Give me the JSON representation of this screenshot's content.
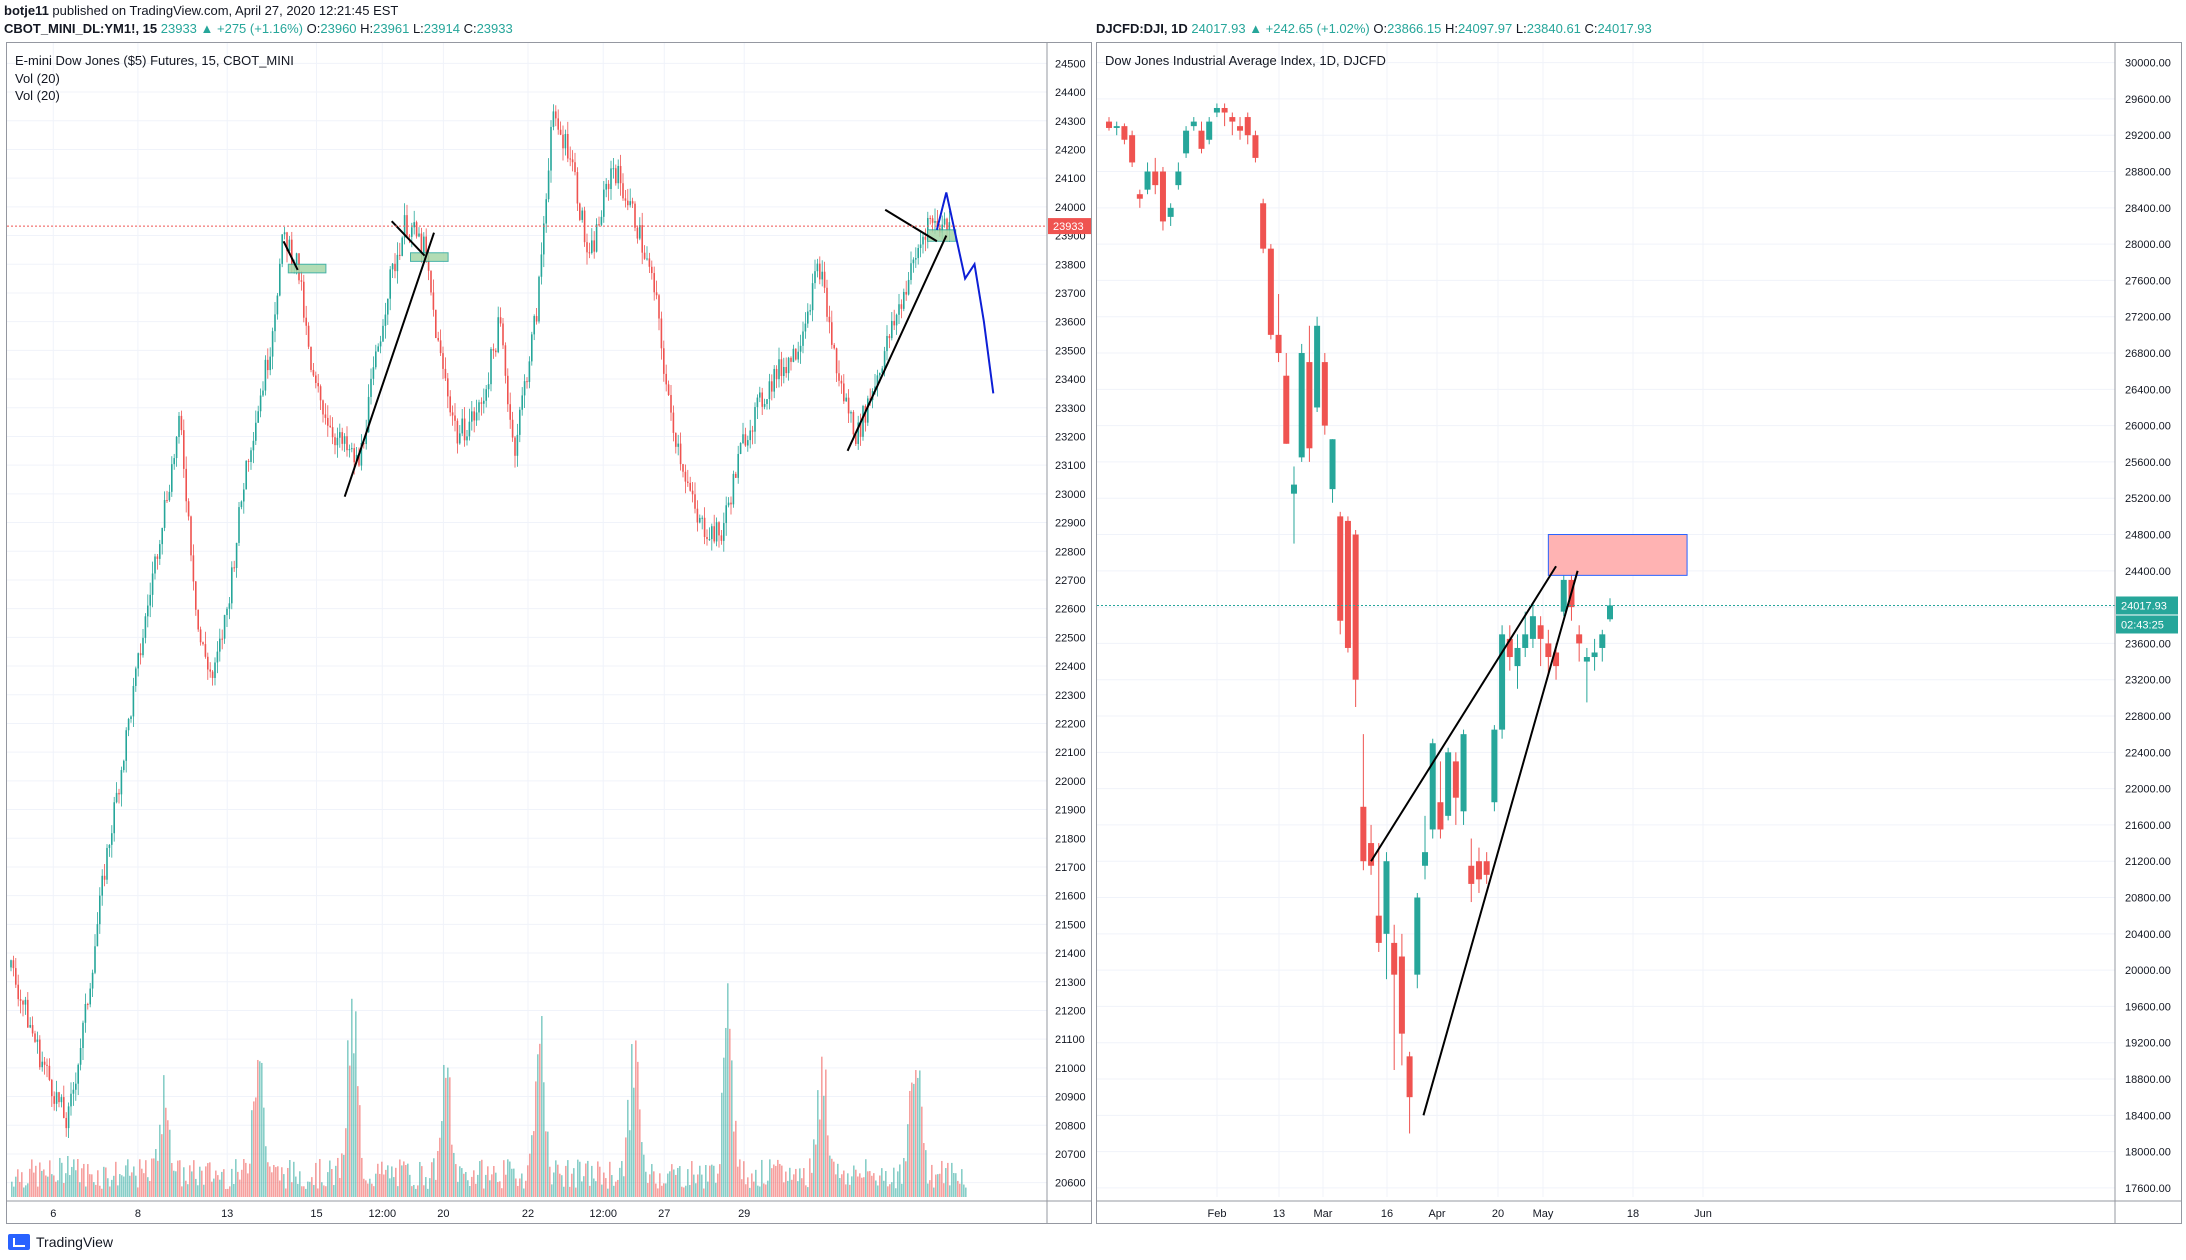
{
  "publish_line": {
    "user": "botje11",
    "text": "published on TradingView.com, April 27, 2020 12:21:45 EST"
  },
  "left_header": {
    "symbol": "CBOT_MINI_DL:YM1!, 15",
    "change": "23933 ▲ +275 (+1.16%)",
    "o_label": "O:",
    "o_value": "23960",
    "h_label": "H:",
    "h_value": "23961",
    "l_label": "L:",
    "l_value": "23914",
    "c_label": "C:",
    "c_value": "23933"
  },
  "right_header": {
    "symbol": "DJCFD:DJI, 1D",
    "change": "24017.93 ▲ +242.65 (+1.02%)",
    "o_label": "O:",
    "o_value": "23866.15",
    "h_label": "H:",
    "h_value": "24097.97",
    "l_label": "L:",
    "l_value": "23840.61",
    "c_label": "C:",
    "c_value": "24017.93"
  },
  "left_chart": {
    "title": "E-mini Dow Jones ($5) Futures, 15, CBOT_MINI",
    "indicators": [
      "Vol (20)",
      "Vol (20)"
    ],
    "last_price_label": "23933",
    "y_ticks": [
      "24500",
      "24400",
      "24300",
      "24200",
      "24100",
      "24000",
      "23900",
      "23800",
      "23700",
      "23600",
      "23500",
      "23400",
      "23300",
      "23200",
      "23100",
      "23000",
      "22900",
      "22800",
      "22700",
      "22600",
      "22500",
      "22400",
      "22300",
      "22200",
      "22100",
      "22000",
      "21900",
      "21800",
      "21700",
      "21600",
      "21500",
      "21400",
      "21300",
      "21200",
      "21100",
      "21000",
      "20900",
      "20800",
      "20700",
      "20600"
    ],
    "x_ticks": [
      "6",
      "8",
      "13",
      "15",
      "12:00",
      "20",
      "22",
      "12:00",
      "27",
      "29"
    ]
  },
  "right_chart": {
    "title": "Dow Jones Industrial Average Index, 1D, DJCFD",
    "last_price_label": "24017.93",
    "countdown_label": "02:43:25",
    "y_ticks": [
      "30000.00",
      "29600.00",
      "29200.00",
      "28800.00",
      "28400.00",
      "28000.00",
      "27600.00",
      "27200.00",
      "26800.00",
      "26400.00",
      "26000.00",
      "25600.00",
      "25200.00",
      "24800.00",
      "24400.00",
      "24000.00",
      "23600.00",
      "23200.00",
      "22800.00",
      "22400.00",
      "22000.00",
      "21600.00",
      "21200.00",
      "20800.00",
      "20400.00",
      "20000.00",
      "19600.00",
      "19200.00",
      "18800.00",
      "18400.00",
      "18000.00",
      "17600.00"
    ],
    "x_ticks": [
      "Feb",
      "13",
      "Mar",
      "16",
      "Apr",
      "20",
      "May",
      "18",
      "Jun"
    ]
  },
  "chart_data": [
    {
      "type": "candlestick",
      "title": "E-mini Dow Jones ($5) Futures, 15, CBOT_MINI",
      "ylim": [
        20550,
        24550
      ],
      "last_price": 23933,
      "price_path": [
        {
          "x": 0,
          "y": 21350
        },
        {
          "x": 0.3,
          "y": 21050
        },
        {
          "x": 0.6,
          "y": 20800
        },
        {
          "x": 0.8,
          "y": 21200
        },
        {
          "x": 1.0,
          "y": 21700
        },
        {
          "x": 1.3,
          "y": 22300
        },
        {
          "x": 1.6,
          "y": 22900
        },
        {
          "x": 1.8,
          "y": 23250
        },
        {
          "x": 2.0,
          "y": 22500
        },
        {
          "x": 2.15,
          "y": 22350
        },
        {
          "x": 2.3,
          "y": 22600
        },
        {
          "x": 2.5,
          "y": 23100
        },
        {
          "x": 2.75,
          "y": 23500
        },
        {
          "x": 2.9,
          "y": 23900
        },
        {
          "x": 3.05,
          "y": 23800
        },
        {
          "x": 3.2,
          "y": 23400
        },
        {
          "x": 3.45,
          "y": 23200
        },
        {
          "x": 3.7,
          "y": 23100
        },
        {
          "x": 4.0,
          "y": 23700
        },
        {
          "x": 4.2,
          "y": 23950
        },
        {
          "x": 4.4,
          "y": 23850
        },
        {
          "x": 4.55,
          "y": 23500
        },
        {
          "x": 4.75,
          "y": 23200
        },
        {
          "x": 5.0,
          "y": 23300
        },
        {
          "x": 5.2,
          "y": 23600
        },
        {
          "x": 5.35,
          "y": 23150
        },
        {
          "x": 5.6,
          "y": 23650
        },
        {
          "x": 5.75,
          "y": 24300
        },
        {
          "x": 5.95,
          "y": 24200
        },
        {
          "x": 6.15,
          "y": 23800
        },
        {
          "x": 6.4,
          "y": 24150
        },
        {
          "x": 6.65,
          "y": 23950
        },
        {
          "x": 6.85,
          "y": 23700
        },
        {
          "x": 7.0,
          "y": 23300
        },
        {
          "x": 7.3,
          "y": 22900
        },
        {
          "x": 7.55,
          "y": 22850
        },
        {
          "x": 7.8,
          "y": 23200
        },
        {
          "x": 8.1,
          "y": 23400
        },
        {
          "x": 8.35,
          "y": 23500
        },
        {
          "x": 8.6,
          "y": 23800
        },
        {
          "x": 8.8,
          "y": 23400
        },
        {
          "x": 9.0,
          "y": 23200
        },
        {
          "x": 9.25,
          "y": 23450
        },
        {
          "x": 9.5,
          "y": 23700
        },
        {
          "x": 9.75,
          "y": 23950
        },
        {
          "x": 10.0,
          "y": 23933
        }
      ],
      "projection_path": [
        {
          "x": 9.85,
          "y": 23920
        },
        {
          "x": 9.95,
          "y": 24050
        },
        {
          "x": 10.05,
          "y": 23900
        },
        {
          "x": 10.15,
          "y": 23750
        },
        {
          "x": 10.25,
          "y": 23800
        },
        {
          "x": 10.35,
          "y": 23600
        },
        {
          "x": 10.45,
          "y": 23350
        }
      ],
      "volume_peaks": [
        0.1,
        0.6,
        0.95,
        1.0,
        0.55,
        0.8,
        0.7,
        0.9,
        0.75,
        1.0
      ],
      "zones": [
        {
          "x1": 2.95,
          "x2": 3.35,
          "y1": 23770,
          "y2": 23800
        },
        {
          "x1": 4.25,
          "x2": 4.65,
          "y1": 23810,
          "y2": 23840
        },
        {
          "x1": 9.75,
          "x2": 10.05,
          "y1": 23880,
          "y2": 23920
        }
      ],
      "trendlines": [
        {
          "x1": 2.9,
          "y1": 23880,
          "x2": 3.05,
          "y2": 23780
        },
        {
          "x1": 3.55,
          "y1": 22990,
          "x2": 4.5,
          "y2": 23910
        },
        {
          "x1": 4.05,
          "y1": 23950,
          "x2": 4.4,
          "y2": 23830
        },
        {
          "x1": 8.9,
          "y1": 23150,
          "x2": 9.95,
          "y2": 23900
        },
        {
          "x1": 9.3,
          "y1": 23990,
          "x2": 9.85,
          "y2": 23880
        }
      ]
    },
    {
      "type": "candlestick",
      "title": "Dow Jones Industrial Average Index, 1D, DJCFD",
      "ylim": [
        17500,
        30150
      ],
      "last_price": 24017.93,
      "candles": [
        {
          "o": 29350,
          "c": 29280,
          "h": 29400,
          "l": 29250
        },
        {
          "o": 29280,
          "c": 29300,
          "h": 29350,
          "l": 29200
        },
        {
          "o": 29300,
          "c": 29150,
          "h": 29330,
          "l": 29100
        },
        {
          "o": 29200,
          "c": 28900,
          "h": 29250,
          "l": 28850
        },
        {
          "o": 28550,
          "c": 28500,
          "h": 28600,
          "l": 28400
        },
        {
          "o": 28600,
          "c": 28800,
          "h": 28900,
          "l": 28550
        },
        {
          "o": 28800,
          "c": 28650,
          "h": 28950,
          "l": 28550
        },
        {
          "o": 28800,
          "c": 28250,
          "h": 28850,
          "l": 28150
        },
        {
          "o": 28300,
          "c": 28400,
          "h": 28450,
          "l": 28200
        },
        {
          "o": 28650,
          "c": 28800,
          "h": 28900,
          "l": 28600
        },
        {
          "o": 29000,
          "c": 29250,
          "h": 29300,
          "l": 28950
        },
        {
          "o": 29300,
          "c": 29350,
          "h": 29400,
          "l": 29250
        },
        {
          "o": 29250,
          "c": 29050,
          "h": 29350,
          "l": 29000
        },
        {
          "o": 29150,
          "c": 29350,
          "h": 29400,
          "l": 29100
        },
        {
          "o": 29450,
          "c": 29500,
          "h": 29550,
          "l": 29400
        },
        {
          "o": 29500,
          "c": 29450,
          "h": 29550,
          "l": 29300
        },
        {
          "o": 29400,
          "c": 29350,
          "h": 29450,
          "l": 29200
        },
        {
          "o": 29300,
          "c": 29250,
          "h": 29400,
          "l": 29150
        },
        {
          "o": 29400,
          "c": 29200,
          "h": 29450,
          "l": 29100
        },
        {
          "o": 29200,
          "c": 28950,
          "h": 29250,
          "l": 28900
        },
        {
          "o": 28450,
          "c": 27950,
          "h": 28500,
          "l": 27900
        },
        {
          "o": 27950,
          "c": 27000,
          "h": 28000,
          "l": 26950
        },
        {
          "o": 27000,
          "c": 26800,
          "h": 27450,
          "l": 26700
        },
        {
          "o": 26550,
          "c": 25800,
          "h": 26800,
          "l": 25800
        },
        {
          "o": 25250,
          "c": 25350,
          "h": 25550,
          "l": 24700
        },
        {
          "o": 25650,
          "c": 26800,
          "h": 26900,
          "l": 25600
        },
        {
          "o": 26700,
          "c": 25750,
          "h": 27100,
          "l": 25600
        },
        {
          "o": 26200,
          "c": 27100,
          "h": 27200,
          "l": 26150
        },
        {
          "o": 26700,
          "c": 26000,
          "h": 26800,
          "l": 25900
        },
        {
          "o": 25300,
          "c": 25850,
          "h": 25850,
          "l": 25150
        },
        {
          "o": 25000,
          "c": 23850,
          "h": 25050,
          "l": 23700
        },
        {
          "o": 24950,
          "c": 23550,
          "h": 25000,
          "l": 23500
        },
        {
          "o": 24800,
          "c": 23200,
          "h": 24850,
          "l": 22900
        },
        {
          "o": 21800,
          "c": 21200,
          "h": 22600,
          "l": 21100
        },
        {
          "o": 21400,
          "c": 21150,
          "h": 21600,
          "l": 21050
        },
        {
          "o": 20600,
          "c": 20300,
          "h": 21400,
          "l": 20200
        },
        {
          "o": 20400,
          "c": 21200,
          "h": 21300,
          "l": 19900
        },
        {
          "o": 20300,
          "c": 19950,
          "h": 20500,
          "l": 18900
        },
        {
          "o": 20150,
          "c": 19300,
          "h": 20400,
          "l": 18950
        },
        {
          "o": 19050,
          "c": 18600,
          "h": 19100,
          "l": 18200
        },
        {
          "o": 19950,
          "c": 20800,
          "h": 20850,
          "l": 19800
        },
        {
          "o": 21150,
          "c": 21300,
          "h": 21700,
          "l": 21000
        },
        {
          "o": 21550,
          "c": 22500,
          "h": 22550,
          "l": 21450
        },
        {
          "o": 21850,
          "c": 21550,
          "h": 22300,
          "l": 21450
        },
        {
          "o": 21700,
          "c": 22400,
          "h": 22450,
          "l": 21650
        },
        {
          "o": 22300,
          "c": 21900,
          "h": 22400,
          "l": 21600
        },
        {
          "o": 21750,
          "c": 22600,
          "h": 22650,
          "l": 21600
        },
        {
          "o": 21150,
          "c": 20950,
          "h": 21450,
          "l": 20750
        },
        {
          "o": 21200,
          "c": 21000,
          "h": 21350,
          "l": 20850
        },
        {
          "o": 21200,
          "c": 21050,
          "h": 21300,
          "l": 20950
        },
        {
          "o": 21850,
          "c": 22650,
          "h": 22700,
          "l": 21750
        },
        {
          "o": 22650,
          "c": 23700,
          "h": 23800,
          "l": 22550
        },
        {
          "o": 23650,
          "c": 23450,
          "h": 23800,
          "l": 23300
        },
        {
          "o": 23350,
          "c": 23550,
          "h": 23700,
          "l": 23100
        },
        {
          "o": 23550,
          "c": 23700,
          "h": 23950,
          "l": 23450
        },
        {
          "o": 23650,
          "c": 23900,
          "h": 24050,
          "l": 23550
        },
        {
          "o": 23800,
          "c": 23650,
          "h": 23900,
          "l": 23350
        },
        {
          "o": 23600,
          "c": 23450,
          "h": 23750,
          "l": 23250
        },
        {
          "o": 23500,
          "c": 23350,
          "h": 23600,
          "l": 23200
        },
        {
          "o": 23950,
          "c": 24300,
          "h": 24350,
          "l": 23900
        },
        {
          "o": 24300,
          "c": 24000,
          "h": 24350,
          "l": 23850
        },
        {
          "o": 23700,
          "c": 23600,
          "h": 23800,
          "l": 23400
        },
        {
          "o": 23400,
          "c": 23450,
          "h": 23550,
          "l": 22950
        },
        {
          "o": 23450,
          "c": 23500,
          "h": 23650,
          "l": 23300
        },
        {
          "o": 23550,
          "c": 23700,
          "h": 23750,
          "l": 23400
        },
        {
          "o": 23866.15,
          "c": 24017.93,
          "h": 24097.97,
          "l": 23840.61
        }
      ],
      "zone": {
        "i1": 57,
        "i2": 75,
        "y1": 24350,
        "y2": 24800
      },
      "trendlines": [
        {
          "i1": 34.0,
          "y1": 21200,
          "i2": 58.0,
          "y2": 24450
        },
        {
          "i1": 40.8,
          "y1": 18400,
          "i2": 60.8,
          "y2": 24400
        }
      ]
    }
  ]
}
